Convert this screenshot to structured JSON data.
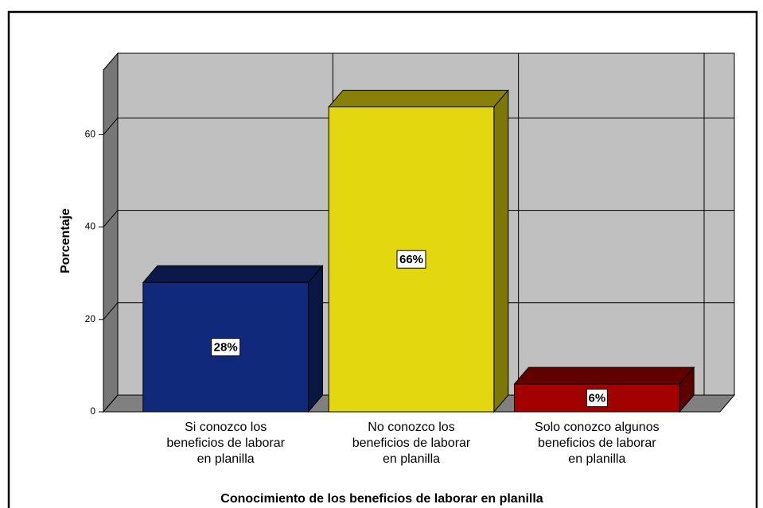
{
  "chart_data": {
    "type": "bar3d",
    "x_label": "Conocimiento de los beneficios de laborar en planilla",
    "y_label": "Porcentaje",
    "categories": [
      "Si conozco los beneficios de laborar en planilla",
      "No conozco los beneficios de laborar en planilla",
      "Solo conozco algunos beneficios de laborar en planilla"
    ],
    "values": [
      28,
      66,
      6
    ],
    "value_labels": [
      "28%",
      "66%",
      "6%"
    ],
    "colors": [
      "#10297a",
      "#e3d70f",
      "#a30000"
    ],
    "ylim": [
      0,
      74
    ],
    "yticks": [
      0,
      20,
      40,
      60
    ],
    "grid": true
  }
}
